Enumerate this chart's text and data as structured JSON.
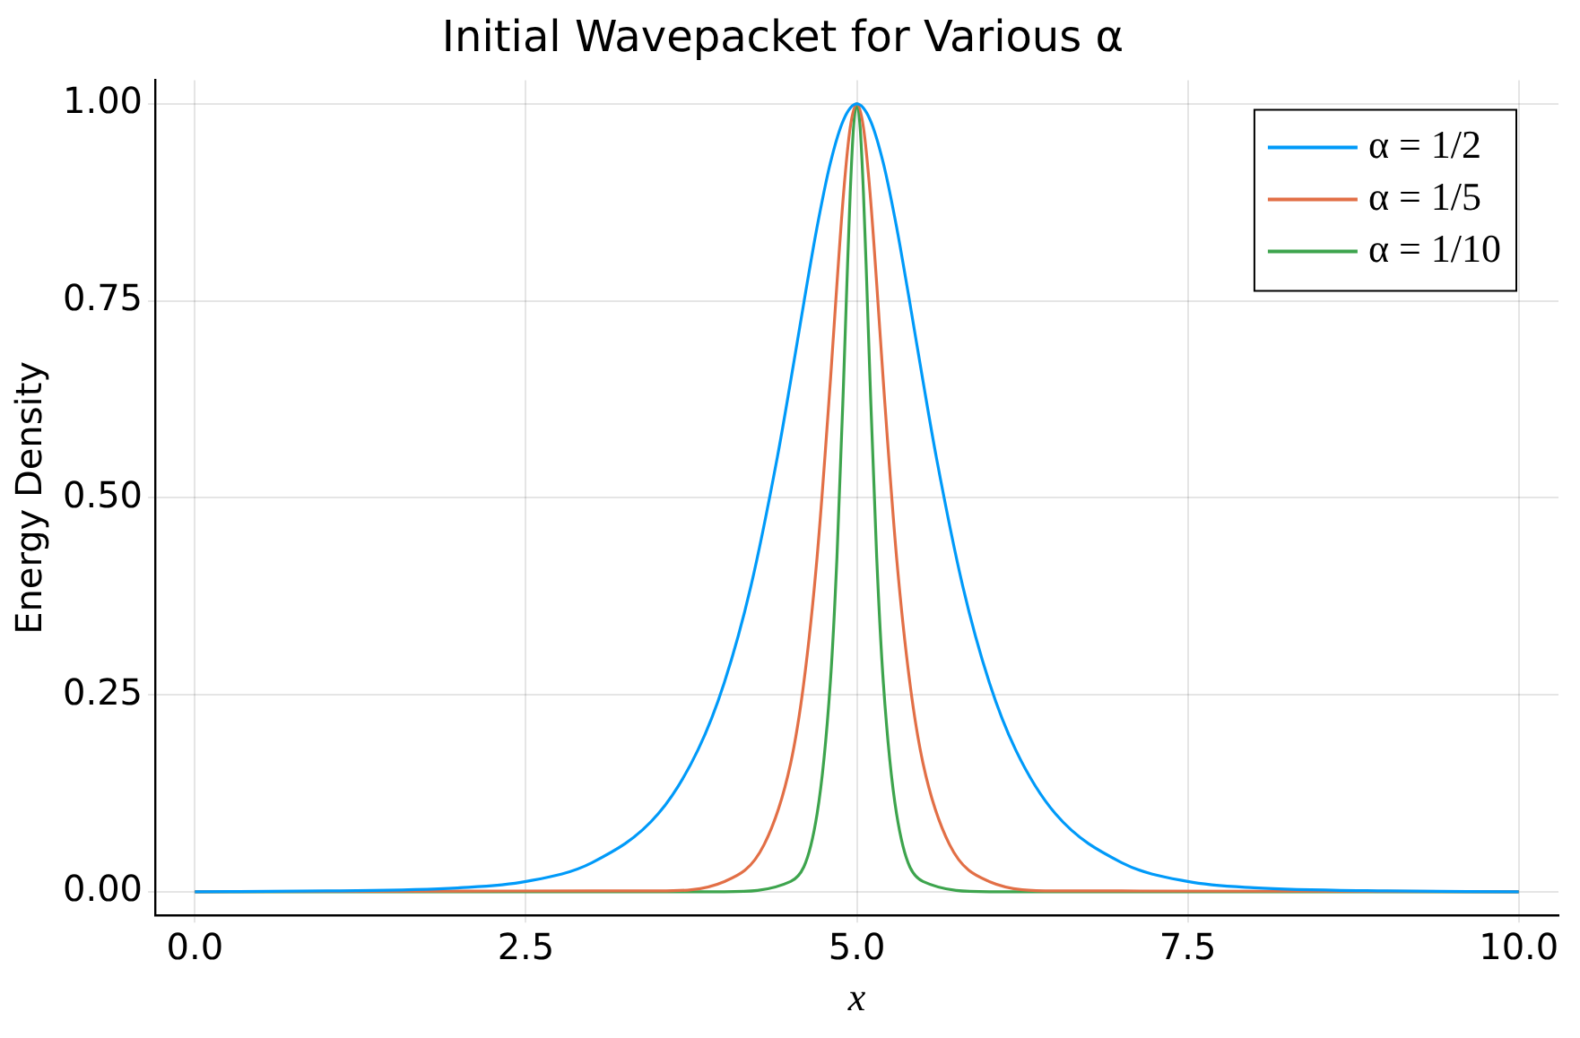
{
  "chart_data": {
    "type": "line",
    "title": "Initial Wavepacket for Various α",
    "xlabel": "x",
    "ylabel": "Energy Density",
    "xlim": [
      -0.3,
      10.3
    ],
    "ylim": [
      -0.03,
      1.03
    ],
    "xticks": [
      {
        "value": 0,
        "label": "0.0"
      },
      {
        "value": 2.5,
        "label": "2.5"
      },
      {
        "value": 5,
        "label": "5.0"
      },
      {
        "value": 7.5,
        "label": "7.5"
      },
      {
        "value": 10,
        "label": "10.0"
      }
    ],
    "yticks": [
      {
        "value": 0,
        "label": "0.00"
      },
      {
        "value": 0.25,
        "label": "0.25"
      },
      {
        "value": 0.5,
        "label": "0.50"
      },
      {
        "value": 0.75,
        "label": "0.75"
      },
      {
        "value": 1,
        "label": "1.00"
      }
    ],
    "grid": true,
    "legend": "top right",
    "marker": "none",
    "line_style": "solid",
    "series": [
      {
        "name": "α = 1/2",
        "color": "#009af9",
        "x": [
          0,
          1,
          2,
          2.5,
          3,
          3.5,
          3.8,
          4,
          4.2,
          4.4,
          4.5,
          4.6,
          4.7,
          4.8,
          4.9,
          5,
          5.1,
          5.2,
          5.3,
          5.4,
          5.5,
          5.6,
          5.8,
          6,
          6.2,
          6.5,
          7,
          7.5,
          8,
          9,
          10
        ],
        "values": [
          0.0,
          0.001,
          0.005,
          0.013,
          0.037,
          0.099,
          0.18,
          0.266,
          0.388,
          0.552,
          0.648,
          0.748,
          0.844,
          0.925,
          0.98,
          1,
          0.98,
          0.925,
          0.844,
          0.748,
          0.648,
          0.552,
          0.388,
          0.266,
          0.18,
          0.099,
          0.037,
          0.013,
          0.005,
          0.001,
          0.0
        ]
      },
      {
        "name": "α = 1/5",
        "color": "#e26f46",
        "x": [
          0,
          3,
          3.5,
          4,
          4.3,
          4.5,
          4.6,
          4.7,
          4.8,
          4.85,
          4.9,
          4.95,
          5,
          5.05,
          5.1,
          5.15,
          5.2,
          5.3,
          5.4,
          5.5,
          5.7,
          6,
          6.5,
          7,
          10
        ],
        "values": [
          0,
          0.001,
          0.001,
          0.013,
          0.06,
          0.163,
          0.266,
          0.425,
          0.648,
          0.772,
          0.887,
          0.97,
          1,
          0.97,
          0.887,
          0.772,
          0.648,
          0.425,
          0.266,
          0.163,
          0.06,
          0.013,
          0.001,
          0.001,
          0
        ]
      },
      {
        "name": "α = 1/10",
        "color": "#3da44d",
        "x": [
          0,
          4,
          4.5,
          4.7,
          4.8,
          4.85,
          4.9,
          4.925,
          4.95,
          4.975,
          5,
          5.025,
          5.05,
          5.075,
          5.1,
          5.15,
          5.2,
          5.3,
          5.5,
          6,
          10
        ],
        "values": [
          0,
          0,
          0.013,
          0.099,
          0.266,
          0.425,
          0.648,
          0.772,
          0.887,
          0.97,
          1,
          0.97,
          0.887,
          0.772,
          0.648,
          0.425,
          0.266,
          0.099,
          0.013,
          0,
          0
        ]
      }
    ]
  }
}
